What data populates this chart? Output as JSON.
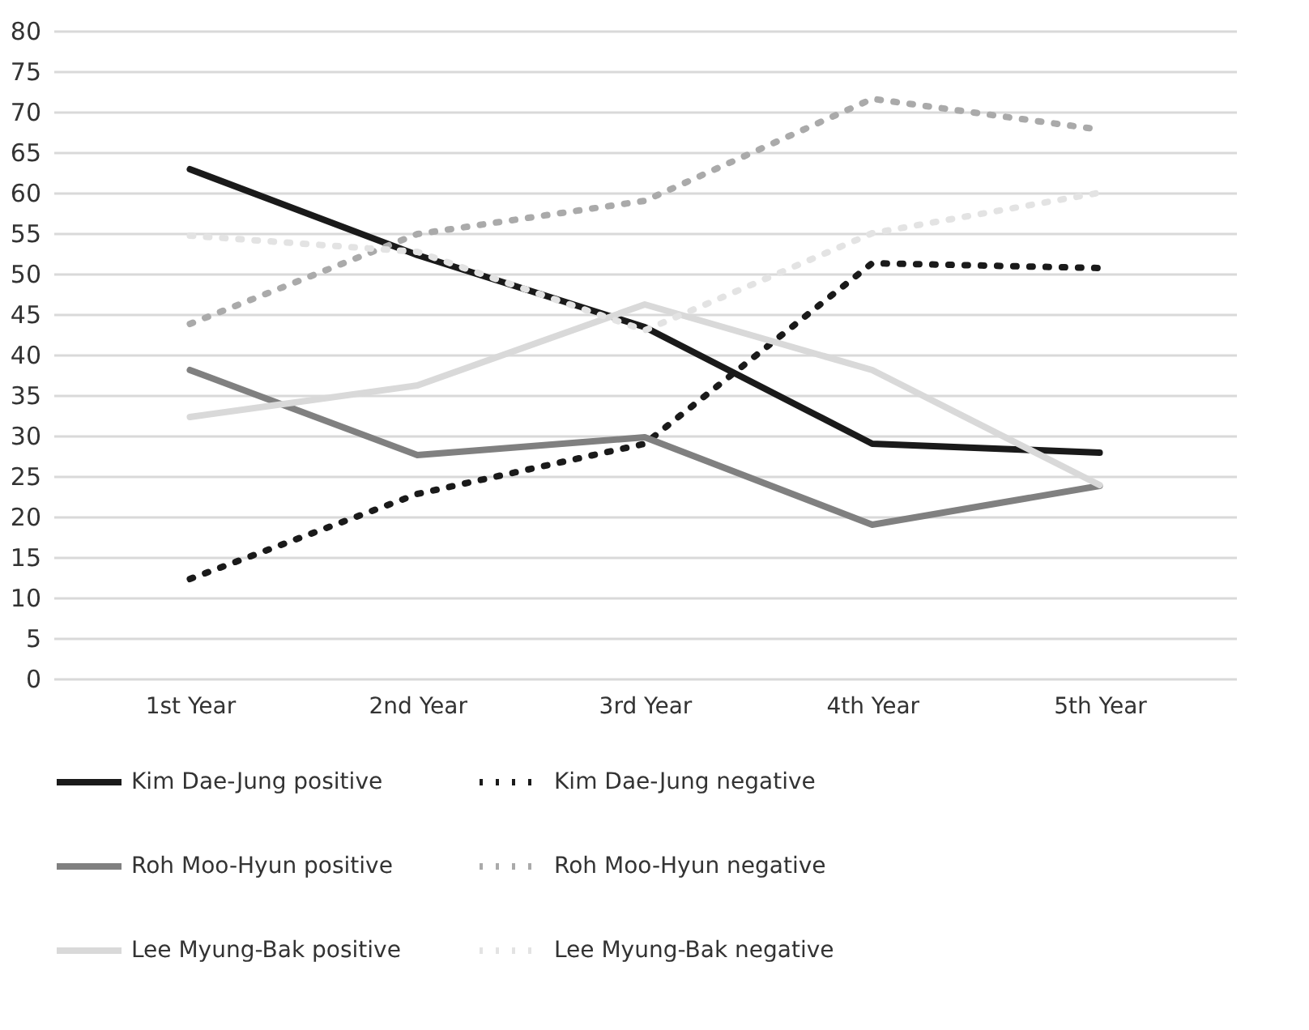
{
  "chart_data": {
    "type": "line",
    "categories": [
      "1st Year",
      "2nd Year",
      "3rd Year",
      "4th Year",
      "5th Year"
    ],
    "ylim": [
      0,
      80
    ],
    "yticks": [
      0,
      5,
      10,
      15,
      20,
      25,
      30,
      35,
      40,
      45,
      50,
      55,
      60,
      65,
      70,
      75,
      80
    ],
    "grid": "y",
    "legend": "bottom",
    "marker": "none",
    "series": [
      {
        "name": "Kim Dae-Jung positive",
        "color": "#1a1a1a",
        "line_style": "solid",
        "values": [
          62.9,
          52.3,
          43.4,
          29.0,
          27.9
        ]
      },
      {
        "name": "Kim Dae-Jung negative",
        "color": "#1a1a1a",
        "line_style": "dotted",
        "values": [
          12.3,
          22.8,
          29.0,
          51.3,
          50.7
        ]
      },
      {
        "name": "Roh Moo-Hyun positive",
        "color": "#808080",
        "line_style": "solid",
        "values": [
          38.1,
          27.6,
          29.8,
          19.0,
          23.8
        ]
      },
      {
        "name": "Roh Moo-Hyun negative",
        "color": "#aaaaaa",
        "line_style": "dotted",
        "values": [
          43.8,
          54.9,
          59.0,
          71.6,
          67.8
        ]
      },
      {
        "name": "Lee Myung-Bak positive",
        "color": "#d9d9d9",
        "line_style": "solid",
        "values": [
          32.3,
          36.2,
          46.2,
          38.1,
          23.9
        ]
      },
      {
        "name": "Lee Myung-Bak negative",
        "color": "#e3e3e3",
        "line_style": "dotted",
        "values": [
          54.7,
          52.7,
          43.0,
          55.0,
          60.0
        ]
      }
    ]
  }
}
